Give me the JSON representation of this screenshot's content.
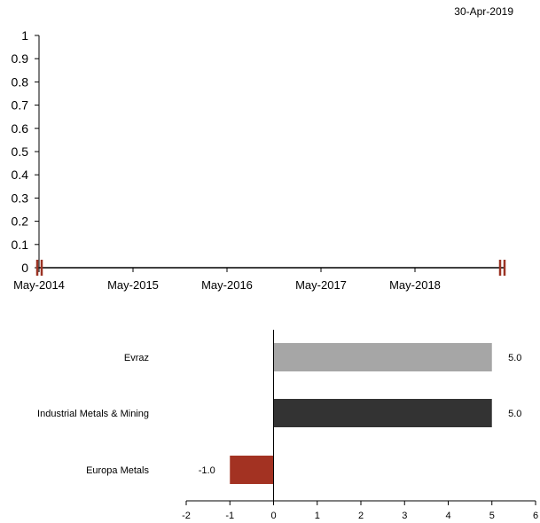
{
  "header": {
    "date": "30-Apr-2019"
  },
  "chart_data": [
    {
      "type": "line",
      "x_ticks": [
        "May-2014",
        "May-2015",
        "May-2016",
        "May-2017",
        "May-2018"
      ],
      "y_ticks": [
        "0",
        "0.1",
        "0.2",
        "0.3",
        "0.4",
        "0.5",
        "0.6",
        "0.7",
        "0.8",
        "0.9",
        "1"
      ],
      "ylim": [
        0,
        1
      ],
      "series": [],
      "colors": {
        "axis": "#000000",
        "break_marker": "#9b3324"
      }
    },
    {
      "type": "bar",
      "orientation": "horizontal",
      "categories": [
        "Evraz",
        "Industrial Metals & Mining",
        "Europa Metals"
      ],
      "values": [
        5.0,
        5.0,
        -1.0
      ],
      "value_labels": [
        "5.0",
        "5.0",
        "-1.0"
      ],
      "xlim": [
        -2,
        6
      ],
      "x_ticks": [
        "-2",
        "-1",
        "0",
        "1",
        "2",
        "3",
        "4",
        "5",
        "6"
      ],
      "colors": [
        "#a6a6a6",
        "#333333",
        "#a33222"
      ]
    }
  ]
}
